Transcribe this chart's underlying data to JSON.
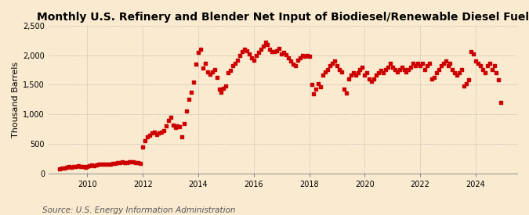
{
  "title": "Monthly U.S. Refinery and Blender Net Input of Biodiesel/Renewable Diesel Fuel",
  "ylabel": "Thousand Barrels",
  "source_text": "Source: U.S. Energy Information Administration",
  "background_color": "#faebd0",
  "plot_bg_color": "#faebd0",
  "marker_color": "#cc0000",
  "marker": "s",
  "markersize": 3.2,
  "ylim": [
    0,
    2500
  ],
  "yticks": [
    0,
    500,
    1000,
    1500,
    2000,
    2500
  ],
  "ytick_labels": [
    "0",
    "500",
    "1,000",
    "1,500",
    "2,000",
    "2,500"
  ],
  "xtick_labels": [
    "2010",
    "2012",
    "2014",
    "2016",
    "2018",
    "2020",
    "2022",
    "2024"
  ],
  "title_fontsize": 10,
  "ylabel_fontsize": 8,
  "source_fontsize": 7.5,
  "xlim_left": 2008.6,
  "xlim_right": 2025.5,
  "data": [
    [
      2009.0,
      80
    ],
    [
      2009.083,
      90
    ],
    [
      2009.167,
      95
    ],
    [
      2009.25,
      100
    ],
    [
      2009.333,
      110
    ],
    [
      2009.417,
      105
    ],
    [
      2009.5,
      115
    ],
    [
      2009.583,
      120
    ],
    [
      2009.667,
      125
    ],
    [
      2009.75,
      115
    ],
    [
      2009.833,
      110
    ],
    [
      2009.917,
      105
    ],
    [
      2010.0,
      120
    ],
    [
      2010.083,
      130
    ],
    [
      2010.167,
      140
    ],
    [
      2010.25,
      135
    ],
    [
      2010.333,
      145
    ],
    [
      2010.417,
      150
    ],
    [
      2010.5,
      160
    ],
    [
      2010.583,
      155
    ],
    [
      2010.667,
      150
    ],
    [
      2010.75,
      155
    ],
    [
      2010.833,
      160
    ],
    [
      2010.917,
      165
    ],
    [
      2011.0,
      175
    ],
    [
      2011.083,
      185
    ],
    [
      2011.167,
      180
    ],
    [
      2011.25,
      190
    ],
    [
      2011.333,
      185
    ],
    [
      2011.417,
      180
    ],
    [
      2011.5,
      195
    ],
    [
      2011.583,
      200
    ],
    [
      2011.667,
      190
    ],
    [
      2011.75,
      185
    ],
    [
      2011.833,
      180
    ],
    [
      2011.917,
      175
    ],
    [
      2012.0,
      450
    ],
    [
      2012.083,
      550
    ],
    [
      2012.167,
      620
    ],
    [
      2012.25,
      650
    ],
    [
      2012.333,
      680
    ],
    [
      2012.417,
      700
    ],
    [
      2012.5,
      660
    ],
    [
      2012.583,
      680
    ],
    [
      2012.667,
      700
    ],
    [
      2012.75,
      720
    ],
    [
      2012.833,
      800
    ],
    [
      2012.917,
      900
    ],
    [
      2013.0,
      950
    ],
    [
      2013.083,
      820
    ],
    [
      2013.167,
      780
    ],
    [
      2013.25,
      800
    ],
    [
      2013.333,
      790
    ],
    [
      2013.417,
      620
    ],
    [
      2013.5,
      850
    ],
    [
      2013.583,
      1050
    ],
    [
      2013.667,
      1250
    ],
    [
      2013.75,
      1380
    ],
    [
      2013.833,
      1550
    ],
    [
      2013.917,
      1850
    ],
    [
      2014.0,
      2050
    ],
    [
      2014.083,
      2100
    ],
    [
      2014.167,
      1780
    ],
    [
      2014.25,
      1870
    ],
    [
      2014.333,
      1720
    ],
    [
      2014.417,
      1680
    ],
    [
      2014.5,
      1720
    ],
    [
      2014.583,
      1760
    ],
    [
      2014.667,
      1620
    ],
    [
      2014.75,
      1420
    ],
    [
      2014.833,
      1380
    ],
    [
      2014.917,
      1440
    ],
    [
      2015.0,
      1480
    ],
    [
      2015.083,
      1700
    ],
    [
      2015.167,
      1740
    ],
    [
      2015.25,
      1820
    ],
    [
      2015.333,
      1860
    ],
    [
      2015.417,
      1920
    ],
    [
      2015.5,
      2000
    ],
    [
      2015.583,
      2060
    ],
    [
      2015.667,
      2100
    ],
    [
      2015.75,
      2080
    ],
    [
      2015.833,
      2020
    ],
    [
      2015.917,
      1960
    ],
    [
      2016.0,
      1920
    ],
    [
      2016.083,
      2000
    ],
    [
      2016.167,
      2050
    ],
    [
      2016.25,
      2100
    ],
    [
      2016.333,
      2150
    ],
    [
      2016.417,
      2220
    ],
    [
      2016.5,
      2180
    ],
    [
      2016.583,
      2100
    ],
    [
      2016.667,
      2060
    ],
    [
      2016.75,
      2060
    ],
    [
      2016.833,
      2080
    ],
    [
      2016.917,
      2120
    ],
    [
      2017.0,
      2020
    ],
    [
      2017.083,
      2050
    ],
    [
      2017.167,
      2010
    ],
    [
      2017.25,
      1960
    ],
    [
      2017.333,
      1900
    ],
    [
      2017.417,
      1850
    ],
    [
      2017.5,
      1820
    ],
    [
      2017.583,
      1920
    ],
    [
      2017.667,
      1960
    ],
    [
      2017.75,
      2000
    ],
    [
      2017.833,
      1980
    ],
    [
      2017.917,
      2000
    ],
    [
      2018.0,
      1980
    ],
    [
      2018.083,
      1500
    ],
    [
      2018.167,
      1350
    ],
    [
      2018.25,
      1420
    ],
    [
      2018.333,
      1520
    ],
    [
      2018.417,
      1460
    ],
    [
      2018.5,
      1660
    ],
    [
      2018.583,
      1720
    ],
    [
      2018.667,
      1760
    ],
    [
      2018.75,
      1820
    ],
    [
      2018.833,
      1860
    ],
    [
      2018.917,
      1900
    ],
    [
      2019.0,
      1820
    ],
    [
      2019.083,
      1760
    ],
    [
      2019.167,
      1720
    ],
    [
      2019.25,
      1420
    ],
    [
      2019.333,
      1360
    ],
    [
      2019.417,
      1600
    ],
    [
      2019.5,
      1660
    ],
    [
      2019.583,
      1700
    ],
    [
      2019.667,
      1660
    ],
    [
      2019.75,
      1700
    ],
    [
      2019.833,
      1760
    ],
    [
      2019.917,
      1800
    ],
    [
      2020.0,
      1660
    ],
    [
      2020.083,
      1700
    ],
    [
      2020.167,
      1600
    ],
    [
      2020.25,
      1560
    ],
    [
      2020.333,
      1600
    ],
    [
      2020.417,
      1660
    ],
    [
      2020.5,
      1700
    ],
    [
      2020.583,
      1750
    ],
    [
      2020.667,
      1700
    ],
    [
      2020.75,
      1760
    ],
    [
      2020.833,
      1800
    ],
    [
      2020.917,
      1860
    ],
    [
      2021.0,
      1800
    ],
    [
      2021.083,
      1760
    ],
    [
      2021.167,
      1720
    ],
    [
      2021.25,
      1760
    ],
    [
      2021.333,
      1800
    ],
    [
      2021.417,
      1760
    ],
    [
      2021.5,
      1720
    ],
    [
      2021.583,
      1760
    ],
    [
      2021.667,
      1800
    ],
    [
      2021.75,
      1860
    ],
    [
      2021.833,
      1820
    ],
    [
      2021.917,
      1860
    ],
    [
      2022.0,
      1820
    ],
    [
      2022.083,
      1860
    ],
    [
      2022.167,
      1760
    ],
    [
      2022.25,
      1820
    ],
    [
      2022.333,
      1860
    ],
    [
      2022.417,
      1600
    ],
    [
      2022.5,
      1620
    ],
    [
      2022.583,
      1700
    ],
    [
      2022.667,
      1760
    ],
    [
      2022.75,
      1820
    ],
    [
      2022.833,
      1860
    ],
    [
      2022.917,
      1900
    ],
    [
      2023.0,
      1820
    ],
    [
      2023.083,
      1860
    ],
    [
      2023.167,
      1760
    ],
    [
      2023.25,
      1700
    ],
    [
      2023.333,
      1660
    ],
    [
      2023.417,
      1700
    ],
    [
      2023.5,
      1760
    ],
    [
      2023.583,
      1480
    ],
    [
      2023.667,
      1520
    ],
    [
      2023.75,
      1580
    ],
    [
      2023.833,
      2060
    ],
    [
      2023.917,
      2020
    ],
    [
      2024.0,
      1900
    ],
    [
      2024.083,
      1860
    ],
    [
      2024.167,
      1820
    ],
    [
      2024.25,
      1760
    ],
    [
      2024.333,
      1700
    ],
    [
      2024.417,
      1820
    ],
    [
      2024.5,
      1860
    ],
    [
      2024.583,
      1760
    ],
    [
      2024.667,
      1820
    ],
    [
      2024.75,
      1700
    ],
    [
      2024.833,
      1580
    ],
    [
      2024.917,
      1200
    ]
  ]
}
